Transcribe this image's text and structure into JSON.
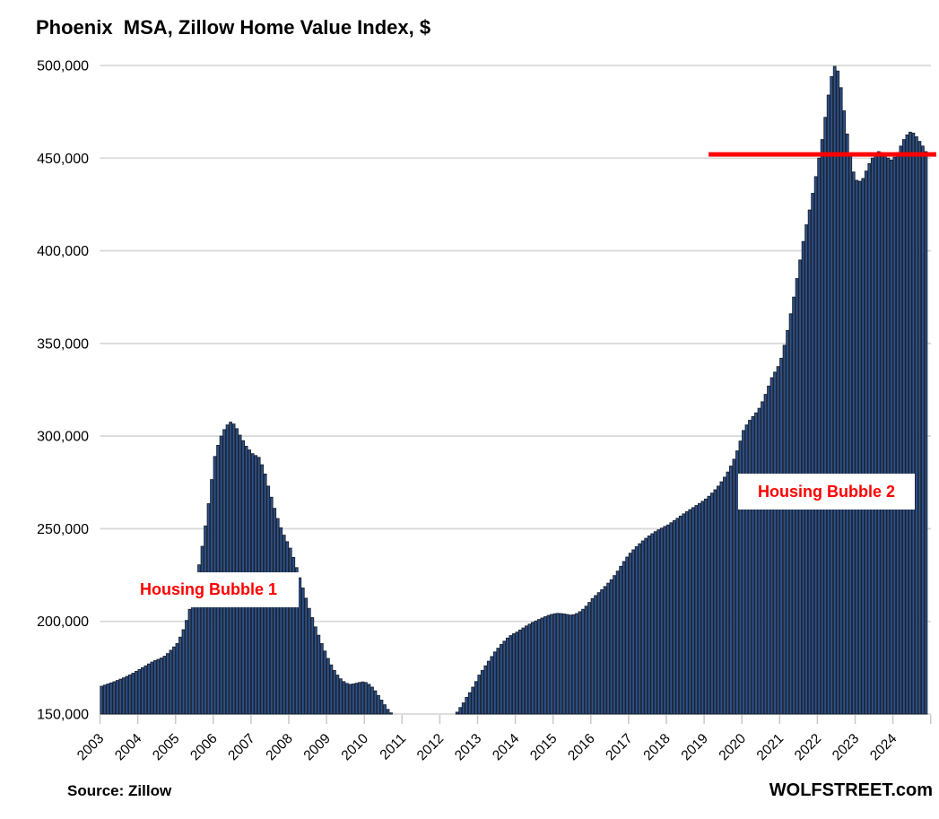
{
  "header": {
    "title": "Phoenix  MSA, Zillow Home Value Index, $"
  },
  "footer": {
    "source": "Source: Zillow",
    "branding": "WOLFSTREET.com"
  },
  "annotations": {
    "bubble1": "Housing Bubble 1",
    "bubble2": "Housing Bubble 2"
  },
  "colors": {
    "bar_fill": "#2e5288",
    "bar_edge": "#1a2233",
    "gridline": "#d9d9d9",
    "tick": "#c9c9c9",
    "red_line": "#ff0000",
    "annotation_red": "#ff0000",
    "text": "#000000"
  },
  "chart_data": {
    "type": "bar",
    "title": "Phoenix  MSA, Zillow Home Value Index, $",
    "xlabel": "",
    "ylabel": "Home value index, $",
    "ylim": [
      150000,
      500000
    ],
    "ytick_interval": 50000,
    "ytick_labels": [
      "150,000",
      "200,000",
      "250,000",
      "300,000",
      "350,000",
      "400,000",
      "450,000",
      "500,000"
    ],
    "x_tick_labels": [
      "2003",
      "2004",
      "2005",
      "2006",
      "2007",
      "2008",
      "2009",
      "2010",
      "2011",
      "2012",
      "2013",
      "2014",
      "2015",
      "2016",
      "2017",
      "2018",
      "2019",
      "2020",
      "2021",
      "2022",
      "2023",
      "2024"
    ],
    "grid": "horizontal",
    "legend": "none",
    "bars_below_axis_min_not_drawn": true,
    "red_line": {
      "value": 452000,
      "start": "2019-02",
      "extends_to_right_edge": true
    },
    "series": [
      {
        "name": "Zillow Home Value Index",
        "start": "2003-01",
        "end": "2024-11",
        "frequency": "monthly",
        "units": "thousand USD",
        "values": [
          165,
          165.6,
          166.2,
          166.8,
          167.4,
          168.1,
          168.8,
          169.5,
          170.3,
          171.1,
          172,
          173,
          174,
          175,
          176,
          177,
          178,
          178.8,
          179.5,
          180.2,
          181.2,
          182.6,
          184.4,
          186.2,
          188,
          191.5,
          195.5,
          200.5,
          206.5,
          213.5,
          221.5,
          230.5,
          240.5,
          251.5,
          263.5,
          276.5,
          289,
          295,
          300,
          303.5,
          306,
          307.5,
          306.5,
          304,
          300.5,
          297.5,
          294.5,
          292.5,
          290.5,
          289.5,
          288.5,
          284.5,
          279.5,
          273,
          267,
          261,
          255.5,
          250.5,
          246.5,
          243,
          239.5,
          234.5,
          229,
          223.5,
          218,
          212.5,
          207,
          202,
          197,
          192.5,
          188,
          184,
          180,
          176.5,
          173.5,
          171,
          169,
          167.5,
          166.5,
          166,
          166.2,
          166.6,
          167,
          167.3,
          167,
          166,
          164.5,
          162.5,
          160,
          157.5,
          155,
          152.5,
          150.6,
          null,
          null,
          null,
          null,
          null,
          null,
          null,
          null,
          null,
          null,
          null,
          null,
          null,
          null,
          null,
          null,
          null,
          null,
          null,
          null,
          151,
          153.5,
          156,
          159,
          161.5,
          164.5,
          167.5,
          171,
          173.5,
          176,
          178.5,
          181,
          183.5,
          185.5,
          187.5,
          189.3,
          191,
          192.3,
          193.3,
          194.2,
          195.3,
          196.4,
          197.5,
          198.5,
          199.4,
          200.2,
          201,
          201.8,
          202.5,
          203.2,
          203.7,
          204.1,
          204.3,
          204.2,
          204,
          203.7,
          203.4,
          203.6,
          204.2,
          205.2,
          206.5,
          208.2,
          210.2,
          212.3,
          213.9,
          215.5,
          217.1,
          218.8,
          220.6,
          222.5,
          224.7,
          227.1,
          229.7,
          232.3,
          234.7,
          236.8,
          238.6,
          240.3,
          241.9,
          243.4,
          244.8,
          246.1,
          247.3,
          248.4,
          249.4,
          250.3,
          251.2,
          252,
          253.2,
          254.4,
          255.6,
          256.8,
          258,
          259.2,
          260.3,
          261.4,
          262.5,
          263.6,
          264.8,
          266,
          267.5,
          269.2,
          271,
          273,
          275.3,
          277.8,
          280.6,
          283.8,
          287.5,
          292,
          297.3,
          303,
          306,
          308.5,
          310.5,
          312.5,
          315,
          318.5,
          322.5,
          327,
          331.5,
          334.5,
          337.5,
          342,
          349,
          357,
          366,
          375,
          385,
          395,
          405,
          414,
          422,
          431,
          440,
          450,
          460,
          472,
          484,
          494,
          499.5,
          497,
          488,
          475.5,
          463,
          451,
          442.5,
          438,
          437.5,
          439,
          443,
          447,
          450,
          452,
          453.5,
          453,
          451.5,
          450,
          449,
          450.5,
          453,
          456.5,
          460,
          462.5,
          464,
          463.5,
          461.5,
          459,
          456.5,
          453.5
        ]
      }
    ]
  }
}
